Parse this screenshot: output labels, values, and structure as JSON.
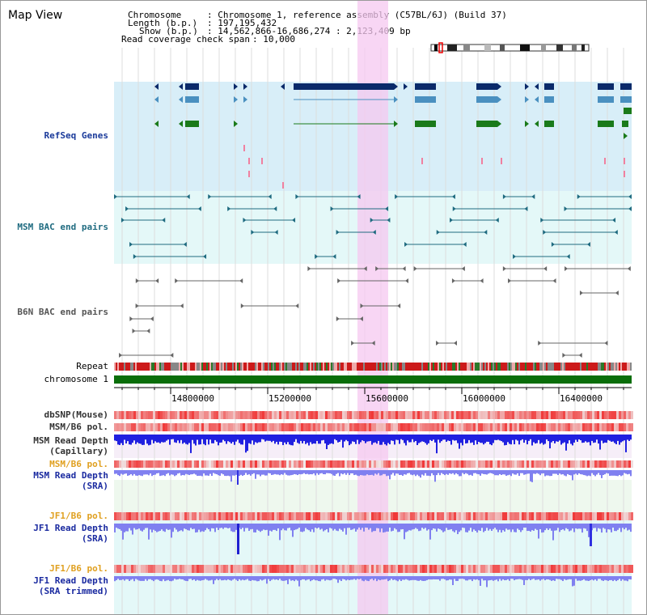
{
  "title": "Map View",
  "header": {
    "chromosome_label": "Chromosome",
    "chromosome_value": ": Chromosome 1, reference assembly (C57BL/6J) (Build 37)",
    "length_label": "Length (b.p.)",
    "length_value": ": 197,195,432",
    "show_label": "Show (b.p.)",
    "show_value": ": 14,562,866-16,686,274 : 2,123,409 bp",
    "coverage_label": "Read coverage check span",
    "coverage_value": ": 10,000"
  },
  "tracks": {
    "refseq": "RefSeq Genes",
    "msm_bac": "MSM BAC end pairs",
    "b6n_bac": "B6N BAC end pairs",
    "repeat": "Repeat",
    "chromosome": "chromosome 1",
    "dbsnp": "dbSNP(Mouse)",
    "msm_b6_pol": "MSM/B6 pol.",
    "msm_depth_cap_1": "MSM Read Depth",
    "msm_depth_cap_2": "(Capillary)",
    "msm_b6_pol_2": "MSM/B6 pol.",
    "msm_depth_sra_1": "MSM Read Depth",
    "msm_depth_sra_2": "(SRA)",
    "jf1_b6_pol": "JF1/B6 pol.",
    "jf1_depth_sra_1": "JF1 Read Depth",
    "jf1_depth_sra_2": "(SRA)",
    "jf1_b6_pol_2": "JF1/B6 pol.",
    "jf1_depth_trim_1": "JF1 Read Depth",
    "jf1_depth_trim_2": "(SRA trimmed)"
  },
  "axis": {
    "ticks": [
      "14800000",
      "15200000",
      "15600000",
      "16000000",
      "16400000"
    ]
  },
  "colors": {
    "refseq_bg": "#d8eef8",
    "msm_bg": "#e4f8f8",
    "highlight": "#f5c8f0",
    "chromosome": "#0a6e0a",
    "gene_dark": "#0a2a6a",
    "gene_mid": "#4a90c0",
    "gene_green": "#1a7a1a",
    "msm_pair": "#1f6b80",
    "b6n_pair": "#666666",
    "depth_blue": "#2020e0",
    "depth_light": "#8080f0"
  }
}
